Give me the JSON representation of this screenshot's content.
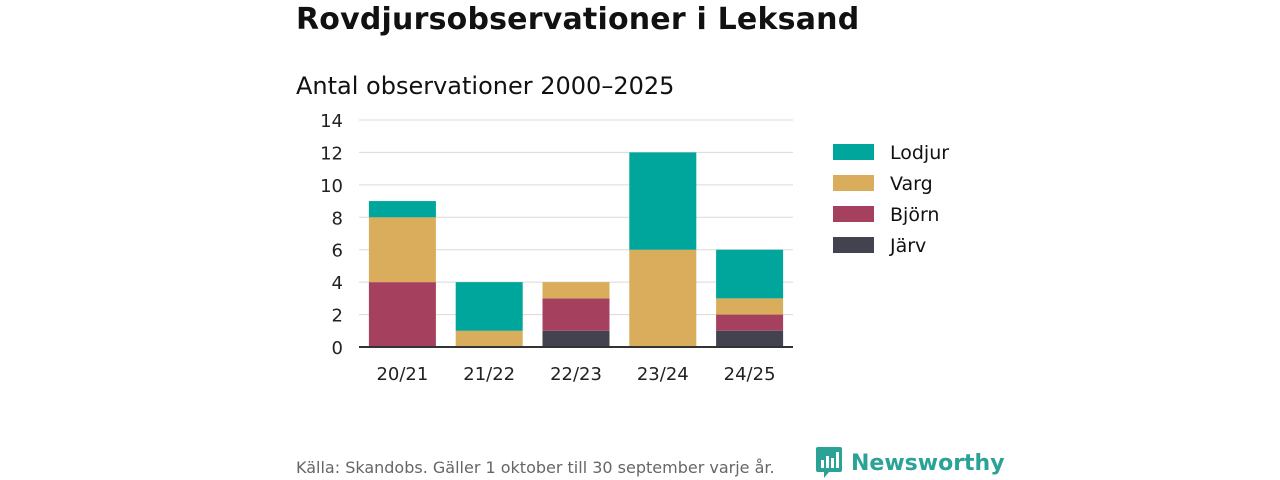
{
  "header": {
    "title": "Rovdjursobservationer i Leksand"
  },
  "chart_data": {
    "type": "bar",
    "stacked": true,
    "title": "Antal observationer 2000–2025",
    "xlabel": "",
    "ylabel": "",
    "ylim": [
      0,
      14
    ],
    "yticks": [
      0,
      2,
      4,
      6,
      8,
      10,
      12,
      14
    ],
    "grid": true,
    "legend_position": "right",
    "categories": [
      "20/21",
      "21/22",
      "22/23",
      "23/24",
      "24/25"
    ],
    "series": [
      {
        "name": "Järv",
        "color": "#43424f",
        "values": [
          0,
          0,
          1,
          0,
          1
        ]
      },
      {
        "name": "Björn",
        "color": "#a6405f",
        "values": [
          4,
          0,
          2,
          0,
          1
        ]
      },
      {
        "name": "Varg",
        "color": "#d9ad5b",
        "values": [
          4,
          1,
          1,
          6,
          1
        ]
      },
      {
        "name": "Lodjur",
        "color": "#00a59b",
        "values": [
          1,
          3,
          0,
          6,
          3
        ]
      }
    ],
    "legend_order": [
      "Lodjur",
      "Varg",
      "Björn",
      "Järv"
    ]
  },
  "footer": {
    "source": "Källa: Skandobs. Gäller 1 oktober till 30 september varje år."
  },
  "brand": {
    "name": "Newsworthy",
    "icon": "newsworthy-logo-icon",
    "color": "#2aa396"
  }
}
